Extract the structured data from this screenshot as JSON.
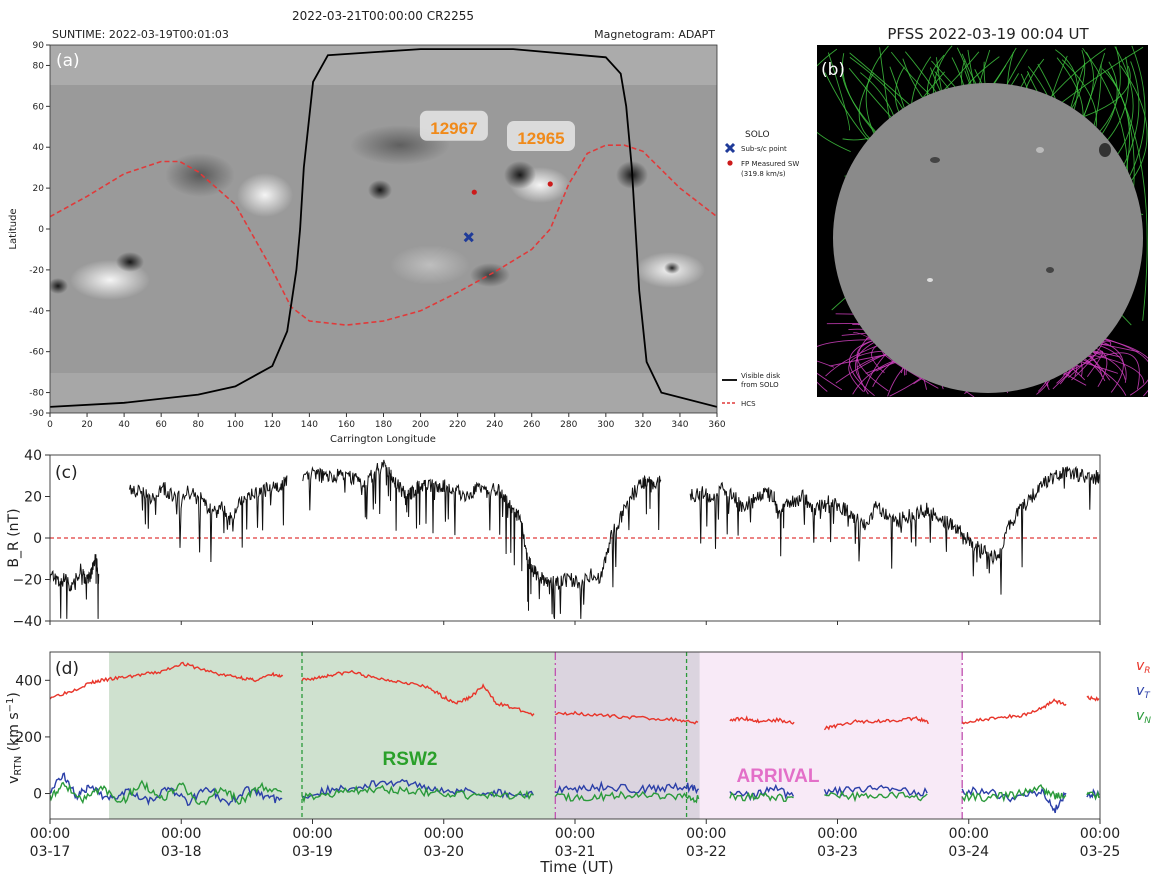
{
  "chart_data": [
    {
      "panel": "(a)",
      "type": "heatmap",
      "title": "2022-03-21T00:00:00 CR2255",
      "header_left": "SUNTIME: 2022-03-19T00:01:03",
      "header_right": "Magnetogram: ADAPT",
      "xlabel": "Carrington Longitude",
      "ylabel": "Latitude",
      "xlim": [
        0,
        360
      ],
      "ylim": [
        -90,
        90
      ],
      "xticks": [
        0,
        20,
        40,
        60,
        80,
        100,
        120,
        140,
        160,
        180,
        200,
        220,
        240,
        260,
        280,
        300,
        320,
        340,
        360
      ],
      "yticks": [
        90,
        80,
        60,
        40,
        20,
        0,
        -20,
        -40,
        -60,
        -80,
        -90
      ],
      "regions": [
        {
          "label": "12967",
          "lon": 218,
          "lat": 50
        },
        {
          "label": "12965",
          "lon": 265,
          "lat": 45
        }
      ],
      "subsc_point": {
        "lon": 226,
        "lat": -4
      },
      "footpoints": [
        {
          "lon": 229,
          "lat": 18
        },
        {
          "lon": 270,
          "lat": 22
        }
      ],
      "hcs": {
        "lon": [
          0,
          20,
          40,
          60,
          70,
          80,
          100,
          120,
          130,
          140,
          160,
          180,
          200,
          220,
          240,
          260,
          270,
          280,
          290,
          300,
          310,
          320,
          340,
          360
        ],
        "lat": [
          6,
          16,
          27,
          33,
          33,
          28,
          12,
          -20,
          -38,
          -45,
          -47,
          -45,
          -40,
          -31,
          -21,
          -10,
          0,
          22,
          37,
          41,
          41,
          38,
          20,
          6
        ]
      },
      "visible_disk": {
        "lon": [
          0,
          40,
          80,
          100,
          120,
          128,
          133,
          135,
          137,
          142,
          150,
          200,
          250,
          300,
          308,
          311,
          314,
          316,
          318,
          322,
          330,
          360
        ],
        "lat": [
          -87,
          -85,
          -81,
          -77,
          -67,
          -50,
          -20,
          0,
          30,
          72,
          85,
          88,
          88,
          84,
          76,
          60,
          30,
          0,
          -30,
          -65,
          -80,
          -87
        ]
      },
      "legend": [
        {
          "title": "SOLO",
          "label": "Sub-s/c point",
          "color": "#1f3b99"
        },
        {
          "label": "FP Measured SW",
          "sublabel": "(319.8 km/s)",
          "color": "#cc1a1a"
        },
        {
          "label": "Visible disk from SOLO",
          "color": "#000000"
        },
        {
          "label": "HCS",
          "color": "#e03a3a"
        }
      ]
    },
    {
      "panel": "(b)",
      "type": "image",
      "title": "PFSS 2022-03-19 00:04 UT",
      "colors": {
        "open_positive": "#3ec23e",
        "open_negative": "#d040c0",
        "disk": "#8a8a8a",
        "background": "#000000"
      }
    },
    {
      "panel": "(c)",
      "type": "line",
      "ylabel": "B_R (nT)",
      "ylim": [
        -40,
        40
      ],
      "yticks": [
        40,
        20,
        0,
        -20,
        -40
      ],
      "x_days_from": "03-17",
      "segments": [
        {
          "x": [
            0.0,
            0.08,
            0.15,
            0.22,
            0.3,
            0.35,
            0.4,
            0.45,
            0.48
          ],
          "y": [
            -18,
            -22,
            -20,
            -24,
            -15,
            -20,
            -18,
            -10,
            -20
          ]
        },
        {
          "x": [
            0.78,
            0.9,
            1.0,
            1.1,
            1.2,
            1.35,
            1.5,
            1.6,
            1.7,
            1.78,
            1.88,
            1.95,
            2.05,
            2.15,
            2.25,
            2.33
          ],
          "y": [
            22,
            24,
            18,
            25,
            20,
            22,
            18,
            12,
            15,
            8,
            18,
            20,
            22,
            24,
            25,
            27
          ]
        },
        {
          "x": [
            2.48,
            2.6,
            2.7,
            2.8,
            2.9,
            3.0,
            3.1,
            3.2,
            3.28,
            3.35,
            3.42,
            3.5,
            3.55,
            3.62,
            3.7,
            3.8,
            3.9,
            4.0,
            4.1,
            4.2,
            4.3,
            4.4,
            4.48,
            4.55,
            4.62,
            4.68,
            4.72,
            4.78,
            4.85,
            4.92,
            5.0,
            5.1,
            5.2,
            5.3,
            5.4,
            5.5,
            5.6,
            5.7,
            5.8,
            5.85,
            5.9,
            6.0
          ],
          "y": [
            30,
            32,
            29,
            30,
            31,
            28,
            26,
            33,
            35,
            30,
            25,
            20,
            22,
            25,
            26,
            24,
            25,
            22,
            20,
            25,
            22,
            24,
            18,
            14,
            8,
            -10,
            -14,
            -18,
            -20,
            -22,
            -21,
            -20,
            -22,
            -18,
            -20,
            0,
            10,
            20,
            26,
            28,
            25,
            27
          ]
        },
        {
          "x": [
            6.28,
            6.4,
            6.5,
            6.6,
            6.7,
            6.8,
            6.9,
            7.0,
            7.1,
            7.15,
            7.2,
            7.3,
            7.4,
            7.5,
            7.6,
            7.7,
            7.8,
            7.9,
            8.0,
            8.1,
            8.2,
            8.3,
            8.4,
            8.5,
            8.6,
            8.7,
            8.8,
            8.9,
            9.0,
            9.1,
            9.2,
            9.3,
            9.4,
            9.5,
            9.6,
            9.7,
            9.8,
            9.9,
            10.0,
            10.1,
            10.2,
            10.3
          ],
          "y": [
            20,
            22,
            18,
            24,
            20,
            15,
            18,
            22,
            20,
            10,
            15,
            18,
            20,
            12,
            18,
            16,
            14,
            10,
            5,
            15,
            12,
            8,
            10,
            12,
            14,
            10,
            8,
            5,
            0,
            -5,
            -8,
            -10,
            5,
            12,
            18,
            25,
            28,
            30,
            32,
            30,
            28,
            30
          ]
        }
      ],
      "reference_line": {
        "y": 0,
        "color": "#e03a3a"
      }
    },
    {
      "panel": "(d)",
      "type": "line",
      "ylabel": "v_RTN (km s^-1)",
      "ylim": [
        -90,
        500
      ],
      "yticks": [
        400,
        200,
        0
      ],
      "xticks": [
        {
          "top": "00:00",
          "bottom": "03-17"
        },
        {
          "top": "00:00",
          "bottom": "03-18"
        },
        {
          "top": "00:00",
          "bottom": "03-19"
        },
        {
          "top": "00:00",
          "bottom": "03-20"
        },
        {
          "top": "00:00",
          "bottom": "03-21"
        },
        {
          "top": "00:00",
          "bottom": "03-22"
        },
        {
          "top": "00:00",
          "bottom": "03-23"
        },
        {
          "top": "00:00",
          "bottom": "03-24"
        },
        {
          "top": "00:00",
          "bottom": "03-25"
        }
      ],
      "xlabel": "Time (UT)",
      "xlim": [
        0,
        8
      ],
      "series": [
        {
          "name": "v_R",
          "color": "#e8352a",
          "segments": [
            {
              "x": [
                0.0,
                0.15,
                0.3,
                0.4,
                0.55,
                0.7,
                0.85,
                1.0,
                1.15,
                1.3,
                1.45,
                1.55,
                1.7,
                1.78
              ],
              "y": [
                340,
                360,
                390,
                400,
                410,
                420,
                430,
                460,
                440,
                420,
                410,
                400,
                420,
                410
              ]
            },
            {
              "x": [
                1.92,
                2.05,
                2.15,
                2.3,
                2.45,
                2.6,
                2.75,
                2.9,
                3.0,
                3.1,
                3.2,
                3.3,
                3.4,
                3.55,
                3.7
              ],
              "y": [
                400,
                410,
                420,
                430,
                410,
                400,
                390,
                370,
                340,
                320,
                340,
                380,
                320,
                300,
                275
              ]
            },
            {
              "x": [
                3.85,
                4.0,
                4.2,
                4.4,
                4.6,
                4.8,
                4.95
              ],
              "y": [
                280,
                285,
                275,
                270,
                265,
                260,
                250
              ]
            },
            {
              "x": [
                5.18,
                5.3,
                5.4,
                5.55,
                5.68
              ],
              "y": [
                260,
                265,
                255,
                260,
                250
              ]
            },
            {
              "x": [
                5.9,
                6.0,
                6.15,
                6.3,
                6.45,
                6.6,
                6.7
              ],
              "y": [
                230,
                240,
                255,
                255,
                260,
                265,
                250
              ]
            },
            {
              "x": [
                6.95,
                7.1,
                7.25,
                7.4,
                7.55,
                7.65,
                7.75
              ],
              "y": [
                250,
                260,
                270,
                275,
                300,
                330,
                310
              ]
            },
            {
              "x": [
                7.9,
                8.0
              ],
              "y": [
                340,
                330
              ]
            }
          ]
        },
        {
          "name": "v_T",
          "color": "#2b3fa8",
          "segments": [
            {
              "x": [
                0.0,
                0.1,
                0.2,
                0.3,
                0.45,
                0.6,
                0.75,
                0.9,
                1.05,
                1.2,
                1.35,
                1.5,
                1.65,
                1.78
              ],
              "y": [
                10,
                70,
                -10,
                20,
                -20,
                15,
                -25,
                20,
                -30,
                25,
                -40,
                15,
                -10,
                -30
              ]
            },
            {
              "x": [
                1.92,
                2.1,
                2.3,
                2.5,
                2.7,
                2.9,
                3.1,
                3.3,
                3.5,
                3.7
              ],
              "y": [
                -10,
                10,
                20,
                35,
                40,
                20,
                10,
                5,
                0,
                -5
              ]
            },
            {
              "x": [
                3.85,
                4.05,
                4.25,
                4.45,
                4.65,
                4.85,
                4.95
              ],
              "y": [
                10,
                20,
                25,
                15,
                20,
                25,
                10
              ]
            },
            {
              "x": [
                5.18,
                5.35,
                5.5,
                5.68
              ],
              "y": [
                10,
                -10,
                20,
                -15
              ]
            },
            {
              "x": [
                5.9,
                6.1,
                6.3,
                6.5,
                6.7
              ],
              "y": [
                5,
                10,
                15,
                10,
                5
              ]
            },
            {
              "x": [
                6.95,
                7.15,
                7.35,
                7.55,
                7.65,
                7.75
              ],
              "y": [
                10,
                5,
                -20,
                10,
                -60,
                5
              ]
            },
            {
              "x": [
                7.9,
                8.0
              ],
              "y": [
                0,
                -5
              ]
            }
          ]
        },
        {
          "name": "v_N",
          "color": "#2a9a3a",
          "segments": [
            {
              "x": [
                0.0,
                0.1,
                0.25,
                0.4,
                0.55,
                0.7,
                0.85,
                1.0,
                1.15,
                1.3,
                1.45,
                1.6,
                1.78
              ],
              "y": [
                -10,
                30,
                -20,
                20,
                -30,
                40,
                -20,
                30,
                -40,
                20,
                -30,
                30,
                -10
              ]
            },
            {
              "x": [
                1.92,
                2.1,
                2.3,
                2.5,
                2.7,
                2.9,
                3.1,
                3.3,
                3.5,
                3.7
              ],
              "y": [
                -15,
                -5,
                10,
                15,
                10,
                5,
                -5,
                -10,
                -5,
                -10
              ]
            },
            {
              "x": [
                3.85,
                4.05,
                4.25,
                4.45,
                4.65,
                4.85,
                4.95
              ],
              "y": [
                -10,
                -15,
                -10,
                -5,
                -15,
                -10,
                -20
              ]
            },
            {
              "x": [
                5.18,
                5.35,
                5.5,
                5.68
              ],
              "y": [
                -5,
                -15,
                -10,
                -20
              ]
            },
            {
              "x": [
                5.9,
                6.1,
                6.3,
                6.5,
                6.7
              ],
              "y": [
                -5,
                -10,
                -5,
                -10,
                -15
              ]
            },
            {
              "x": [
                6.95,
                7.15,
                7.35,
                7.55,
                7.65,
                7.75
              ],
              "y": [
                -10,
                -15,
                -5,
                20,
                -10,
                -10
              ]
            },
            {
              "x": [
                7.9,
                8.0
              ],
              "y": [
                -5,
                -10
              ]
            }
          ]
        }
      ],
      "shaded_intervals": [
        {
          "from": 0.45,
          "to": 3.85,
          "color": "#a8c8a8"
        },
        {
          "from": 3.85,
          "to": 4.95,
          "color": "#bdb0c4"
        },
        {
          "from": 4.95,
          "to": 6.95,
          "color": "#f2d8f0"
        }
      ],
      "vlines": [
        {
          "x": 1.92,
          "color": "#2a9a3a",
          "style": "dashed"
        },
        {
          "x": 4.85,
          "color": "#2a9a3a",
          "style": "dashed"
        },
        {
          "x": 3.85,
          "color": "#c050b0",
          "style": "dashdot"
        },
        {
          "x": 6.95,
          "color": "#c050b0",
          "style": "dashdot"
        }
      ],
      "annotations": [
        {
          "text": "RSW2",
          "color": "#2aa02a"
        },
        {
          "text": "ARRIVAL",
          "color": "#e36fc8"
        }
      ],
      "legend": [
        {
          "label": "v_R",
          "color": "#e8352a"
        },
        {
          "label": "v_T",
          "color": "#2b3fa8"
        },
        {
          "label": "v_N",
          "color": "#2a9a3a"
        }
      ]
    }
  ]
}
